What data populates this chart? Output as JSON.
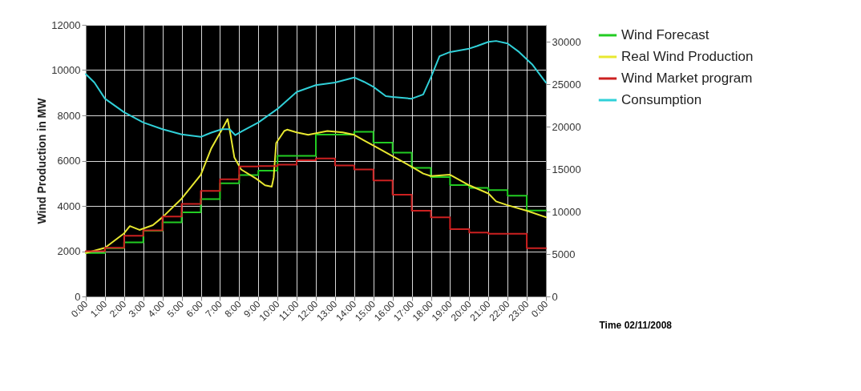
{
  "chart_data": {
    "type": "line",
    "xlabel": "Time 02/11/2008",
    "ylabel": "Wind Production in MW",
    "xlim": [
      0,
      24
    ],
    "ylim": [
      0,
      12000
    ],
    "y2lim": [
      0,
      32000
    ],
    "xticks": [
      {
        "value": 0,
        "label": "0:00"
      },
      {
        "value": 1,
        "label": "1:00"
      },
      {
        "value": 2,
        "label": "2:00"
      },
      {
        "value": 3,
        "label": "3:00"
      },
      {
        "value": 4,
        "label": "4:00"
      },
      {
        "value": 5,
        "label": "5:00"
      },
      {
        "value": 6,
        "label": "6:00"
      },
      {
        "value": 7,
        "label": "7:00"
      },
      {
        "value": 8,
        "label": "8:00"
      },
      {
        "value": 9,
        "label": "9:00"
      },
      {
        "value": 10,
        "label": "10:00"
      },
      {
        "value": 11,
        "label": "11:00"
      },
      {
        "value": 12,
        "label": "12:00"
      },
      {
        "value": 13,
        "label": "13:00"
      },
      {
        "value": 14,
        "label": "14:00"
      },
      {
        "value": 15,
        "label": "15:00"
      },
      {
        "value": 16,
        "label": "16:00"
      },
      {
        "value": 17,
        "label": "17:00"
      },
      {
        "value": 18,
        "label": "18:00"
      },
      {
        "value": 19,
        "label": "19:00"
      },
      {
        "value": 20,
        "label": "20:00"
      },
      {
        "value": 21,
        "label": "21:00"
      },
      {
        "value": 22,
        "label": "22:00"
      },
      {
        "value": 23,
        "label": "23:00"
      },
      {
        "value": 24,
        "label": "0:00"
      }
    ],
    "yticks": [
      0,
      2000,
      4000,
      6000,
      8000,
      10000,
      12000
    ],
    "y2ticks": [
      0,
      5000,
      10000,
      15000,
      20000,
      25000,
      30000
    ],
    "grid": true,
    "legend": "right",
    "series": [
      {
        "name": "Wind Forecast",
        "color": "#22cc22",
        "type": "step",
        "x": [
          0,
          1,
          2,
          3,
          4,
          5,
          6,
          7,
          8,
          9,
          10,
          11,
          12,
          13,
          14,
          15,
          16,
          17,
          18,
          19,
          20,
          21,
          22,
          23,
          24
        ],
        "values": [
          1920,
          2130,
          2390,
          2900,
          3270,
          3720,
          4300,
          5000,
          5360,
          5560,
          6210,
          6210,
          7150,
          7150,
          7270,
          6800,
          6350,
          5680,
          5270,
          4920,
          4800,
          4700,
          4450,
          3800,
          3800
        ]
      },
      {
        "name": "Real Wind Production",
        "color": "#e8e830",
        "x": [
          0,
          1,
          2,
          2.3,
          2.8,
          3.5,
          4,
          5,
          6,
          6.55,
          7.1,
          7.4,
          7.55,
          7.75,
          8.1,
          8.9,
          9.35,
          9.7,
          9.8,
          9.93,
          10.35,
          10.5,
          11,
          11.6,
          12.6,
          13.4,
          14,
          14.5,
          15,
          16,
          17,
          17.6,
          18,
          19,
          20,
          21,
          21.4,
          22,
          23,
          24
        ],
        "values": [
          1920,
          2150,
          2790,
          3110,
          2940,
          3150,
          3500,
          4320,
          5380,
          6550,
          7370,
          7840,
          7140,
          6140,
          5610,
          5200,
          4910,
          4850,
          5260,
          6780,
          7310,
          7370,
          7250,
          7140,
          7310,
          7250,
          7140,
          6900,
          6670,
          6200,
          5730,
          5430,
          5320,
          5380,
          4910,
          4550,
          4200,
          4030,
          3790,
          3500
        ]
      },
      {
        "name": "Wind Market program",
        "color": "#cc2020",
        "type": "step",
        "x": [
          0,
          1,
          2,
          3,
          4,
          5,
          6,
          7,
          8,
          9,
          10,
          11,
          12,
          13,
          14,
          15,
          16,
          17,
          18,
          19,
          20,
          21,
          22,
          23,
          24
        ],
        "values": [
          2000,
          2150,
          2680,
          2920,
          3530,
          4090,
          4660,
          5180,
          5740,
          5760,
          5820,
          6020,
          6100,
          5790,
          5610,
          5120,
          4500,
          3790,
          3500,
          2970,
          2820,
          2770,
          2770,
          2130,
          2130
        ]
      },
      {
        "name": "Consumption",
        "color": "#30d0d8",
        "axis": "y2",
        "x": [
          0,
          0.45,
          1,
          2,
          3,
          4,
          5,
          6,
          6.55,
          7.1,
          7.5,
          7.8,
          8.1,
          9,
          10,
          11,
          12,
          13,
          14,
          14.5,
          15,
          15.65,
          16,
          17,
          17.6,
          18,
          18.45,
          19,
          20,
          20.4,
          21,
          21.4,
          22,
          22.6,
          23.3,
          24
        ],
        "values": [
          26200,
          25200,
          23300,
          21700,
          20500,
          19700,
          19100,
          18800,
          19300,
          19700,
          19700,
          19000,
          19400,
          20500,
          22100,
          24100,
          24900,
          25200,
          25800,
          25300,
          24700,
          23600,
          23500,
          23300,
          23800,
          25800,
          28300,
          28800,
          29200,
          29500,
          30000,
          30100,
          29800,
          28800,
          27300,
          25200
        ]
      }
    ]
  }
}
